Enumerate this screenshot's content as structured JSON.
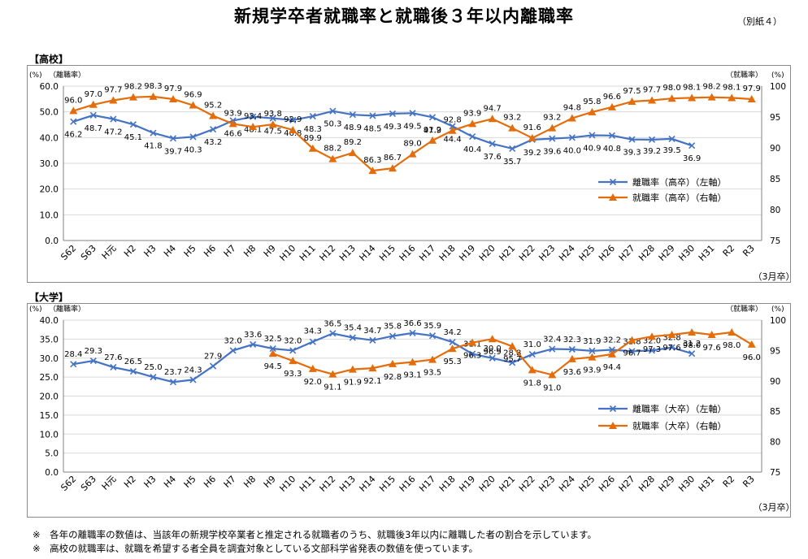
{
  "page": {
    "title": "新規学卒者就職率と就職後３年以内離職率",
    "annex": "（別紙４）",
    "notes": [
      "※　各年の離職率の数値は、当該年の新規学校卒業者と推定される就職者のうち、就職後3年以内に離職した者の割合を示しています。",
      "※　高校の就職率は、就職を希望する者全員を調査対象としている文部科学省発表の数値を使っています。"
    ]
  },
  "colors": {
    "separation": "#4472c4",
    "employment": "#e46c0a",
    "grid": "#d9d9d9",
    "axis": "#808080"
  },
  "chart_data": [
    {
      "type": "line",
      "panel_label": "【高校】",
      "categories": [
        "S62",
        "S63",
        "H元",
        "H2",
        "H3",
        "H4",
        "H5",
        "H6",
        "H7",
        "H8",
        "H9",
        "H10",
        "H11",
        "H12",
        "H13",
        "H14",
        "H15",
        "H16",
        "H17",
        "H18",
        "H19",
        "H20",
        "H21",
        "H22",
        "H23",
        "H24",
        "H25",
        "H26",
        "H27",
        "H28",
        "H29",
        "H30",
        "H31",
        "R2",
        "R3"
      ],
      "x_unit_label": "（3月卒）",
      "y_left": {
        "unit": "(%)",
        "label": "（離職率）",
        "min": 0,
        "max": 60,
        "ticks": [
          "0.0",
          "10.0",
          "20.0",
          "30.0",
          "40.0",
          "50.0",
          "60.0"
        ]
      },
      "y_right": {
        "unit": "(%)",
        "label": "（就職率）",
        "min": 75,
        "max": 100,
        "ticks": [
          "75",
          "80",
          "85",
          "90",
          "95",
          "100"
        ]
      },
      "grid": true,
      "legend_position": "right-middle",
      "series": [
        {
          "name": "離職率（高卒）（左軸）",
          "axis": "left",
          "marker": "x",
          "values": [
            46.2,
            48.7,
            47.2,
            45.1,
            41.8,
            39.7,
            40.3,
            43.2,
            46.6,
            48.1,
            47.5,
            46.8,
            48.3,
            50.3,
            48.9,
            48.5,
            49.3,
            49.5,
            47.9,
            44.4,
            40.4,
            37.6,
            35.7,
            39.2,
            39.6,
            40.0,
            40.9,
            40.8,
            39.3,
            39.2,
            39.5,
            36.9,
            null,
            null,
            null
          ],
          "labels": [
            "46.2",
            "48.7",
            "47.2",
            "45.1",
            "41.8",
            "39.7",
            "40.3",
            "43.2",
            "46.6",
            "48.1",
            "47.5",
            "46.8",
            "48.3",
            "50.3",
            "48.9",
            "48.5",
            "49.3",
            "49.5",
            "47.9",
            "44.4",
            "40.4",
            "37.6",
            "35.7",
            "39.2",
            "39.6",
            "40.0",
            "40.9",
            "40.8",
            "39.3",
            "39.2",
            "39.5",
            "36.9",
            null,
            null,
            null
          ]
        },
        {
          "name": "就職率（高卒）（右軸）",
          "axis": "right",
          "marker": "triangle",
          "values": [
            96.0,
            97.0,
            97.7,
            98.2,
            98.3,
            97.9,
            96.9,
            95.2,
            93.9,
            93.4,
            93.8,
            92.9,
            89.9,
            88.2,
            89.2,
            86.3,
            86.7,
            89.0,
            91.2,
            92.8,
            93.9,
            94.7,
            93.2,
            91.6,
            93.2,
            94.8,
            95.8,
            96.6,
            97.5,
            97.7,
            98.0,
            98.1,
            98.2,
            98.1,
            97.9
          ],
          "labels": [
            "96.0",
            "97.0",
            "97.7",
            "98.2",
            "98.3",
            "97.9",
            "96.9",
            "95.2",
            "93.9",
            "93.4",
            "93.8",
            "92.9",
            "89.9",
            "88.2",
            "89.2",
            "86.3",
            "86.7",
            "89.0",
            "91.2",
            "92.8",
            "93.9",
            "94.7",
            "93.2",
            "91.6",
            "93.2",
            "94.8",
            "95.8",
            "96.6",
            "97.5",
            "97.7",
            "98.0",
            "98.1",
            "98.2",
            "98.1",
            "97.9"
          ]
        }
      ]
    },
    {
      "type": "line",
      "panel_label": "【大学】",
      "categories": [
        "S62",
        "S63",
        "H元",
        "H2",
        "H3",
        "H4",
        "H5",
        "H6",
        "H7",
        "H8",
        "H9",
        "H10",
        "H11",
        "H12",
        "H13",
        "H14",
        "H15",
        "H16",
        "H17",
        "H18",
        "H19",
        "H20",
        "H21",
        "H22",
        "H23",
        "H24",
        "H25",
        "H26",
        "H27",
        "H28",
        "H29",
        "H30",
        "H31",
        "R2",
        "R3"
      ],
      "x_unit_label": "（3月卒）",
      "y_left": {
        "unit": "(%)",
        "label": "（離職率）",
        "min": 0,
        "max": 40,
        "ticks": [
          "0.0",
          "5.0",
          "10.0",
          "15.0",
          "20.0",
          "25.0",
          "30.0",
          "35.0",
          "40.0"
        ]
      },
      "y_right": {
        "unit": "(%)",
        "label": "（就職率）",
        "min": 75,
        "max": 100,
        "ticks": [
          "75",
          "80",
          "85",
          "90",
          "95",
          "100"
        ]
      },
      "grid": true,
      "legend_position": "right-middle",
      "series": [
        {
          "name": "離職率（大卒）（左軸）",
          "axis": "left",
          "marker": "x",
          "values": [
            28.4,
            29.3,
            27.6,
            26.5,
            25.0,
            23.7,
            24.3,
            27.9,
            32.0,
            33.6,
            32.5,
            32.0,
            34.3,
            36.5,
            35.4,
            34.7,
            35.8,
            36.6,
            35.9,
            34.2,
            31.1,
            30.0,
            28.8,
            31.0,
            32.4,
            32.3,
            31.9,
            32.2,
            31.8,
            32.0,
            32.8,
            31.2,
            null,
            null,
            null
          ],
          "labels": [
            "28.4",
            "29.3",
            "27.6",
            "26.5",
            "25.0",
            "23.7",
            "24.3",
            "27.9",
            "32.0",
            "33.6",
            "32.5",
            "32.0",
            "34.3",
            "36.5",
            "35.4",
            "34.7",
            "35.8",
            "36.6",
            "35.9",
            "34.2",
            "31.1",
            "30.0",
            "28.8",
            "31.0",
            "32.4",
            "32.3",
            "31.9",
            "32.2",
            "31.8",
            "32.0",
            "32.8",
            "31.2",
            null,
            null,
            null
          ]
        },
        {
          "name": "就職率（大卒）（右軸）",
          "axis": "right",
          "marker": "triangle",
          "values": [
            null,
            null,
            null,
            null,
            null,
            null,
            null,
            null,
            null,
            null,
            94.5,
            93.3,
            92.0,
            91.1,
            91.9,
            92.1,
            92.8,
            93.1,
            93.5,
            95.3,
            96.3,
            96.9,
            95.7,
            91.8,
            91.0,
            93.6,
            93.9,
            94.4,
            96.7,
            97.3,
            97.6,
            98.0,
            97.6,
            98.0,
            96.0
          ],
          "labels": [
            null,
            null,
            null,
            null,
            null,
            null,
            null,
            null,
            null,
            null,
            "94.5",
            "93.3",
            "92.0",
            "91.1",
            "91.9",
            "92.1",
            "92.8",
            "93.1",
            "93.5",
            "95.3",
            "96.3",
            "96.9",
            "95.7",
            "91.8",
            "91.0",
            "93.6",
            "93.9",
            "94.4",
            "96.7",
            "97.3",
            "97.6",
            "98.0",
            "97.6",
            "98.0",
            "96.0"
          ]
        }
      ]
    }
  ]
}
